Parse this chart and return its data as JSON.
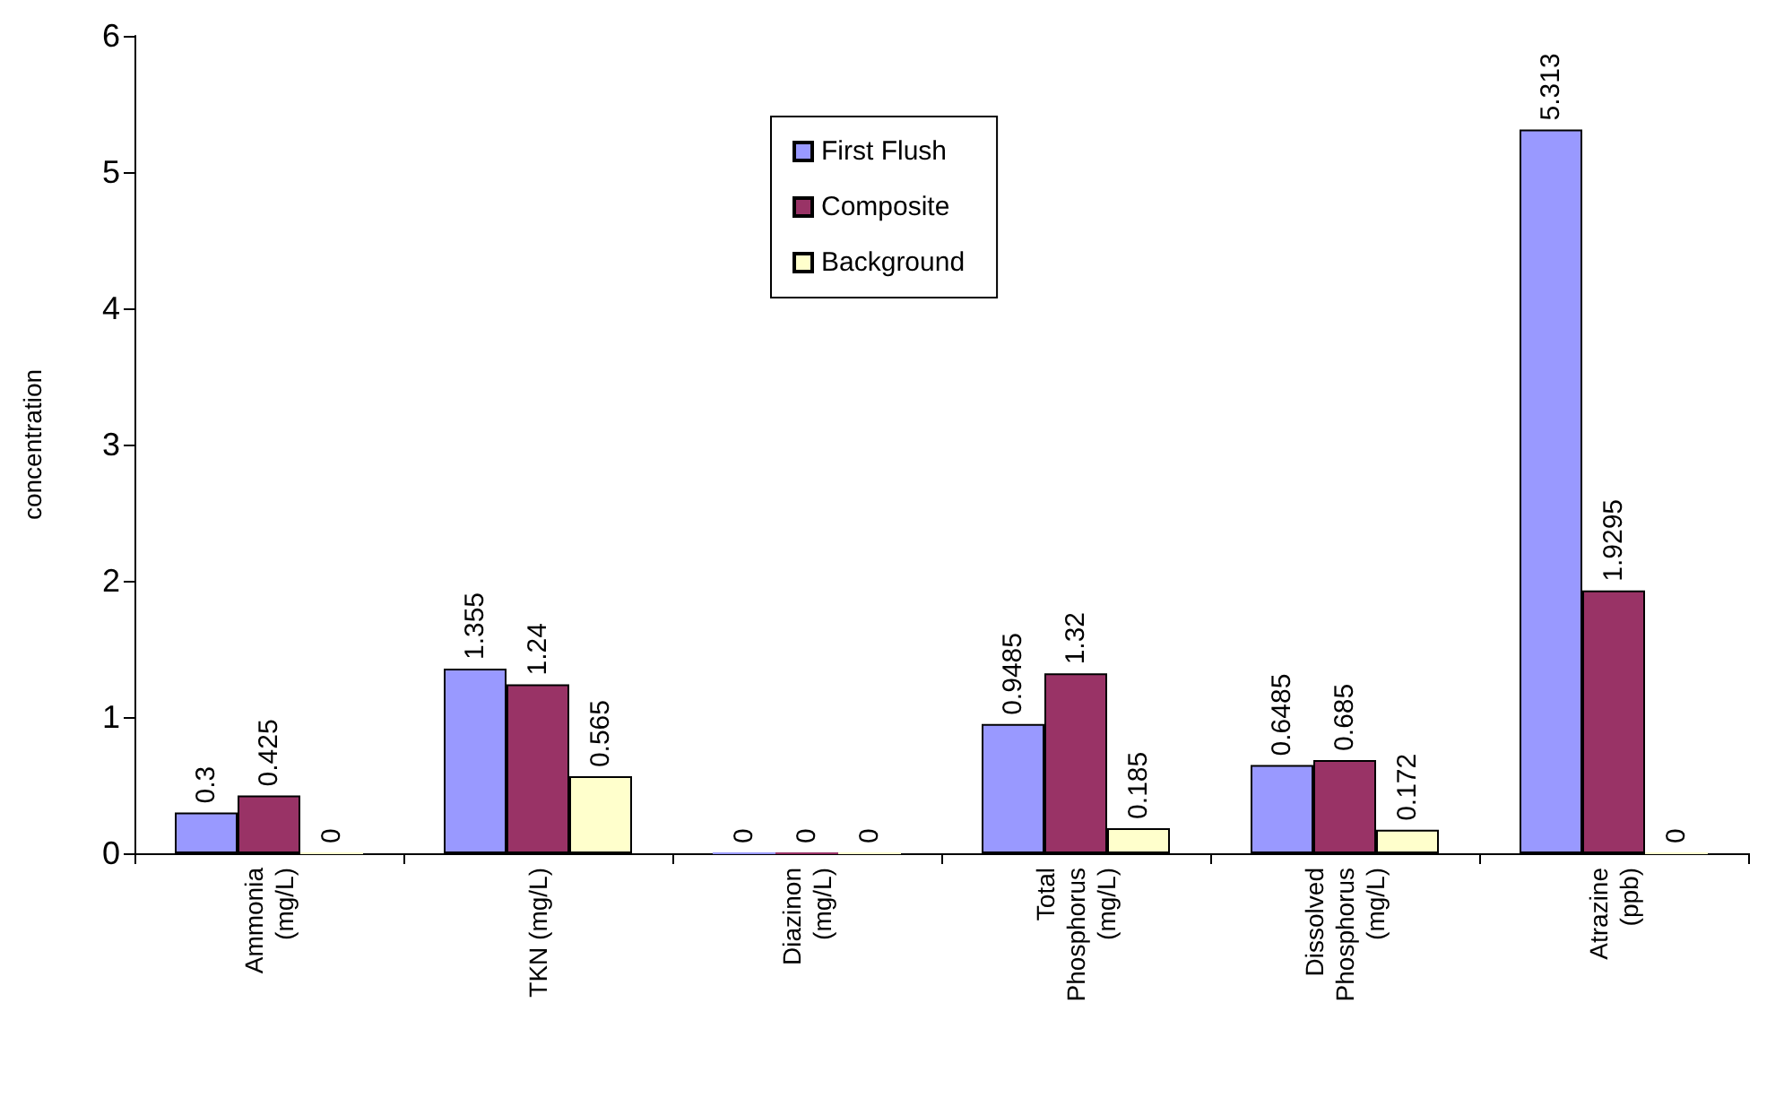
{
  "chart_data": {
    "type": "bar",
    "ylabel": "concentration",
    "categories": [
      "Ammonia (mg/L)",
      "TKN (mg/L)",
      "Diazinon (mg/L)",
      "Total Phosphorus (mg/L)",
      "Dissolved Phosphorus (mg/L)",
      "Atrazine (ppb)"
    ],
    "series": [
      {
        "name": "First Flush",
        "color": "#9999ff",
        "values": [
          0.3,
          1.355,
          0,
          0.9485,
          0.6485,
          5.313
        ]
      },
      {
        "name": "Composite",
        "color": "#993366",
        "values": [
          0.425,
          1.24,
          0,
          1.32,
          0.685,
          1.9295
        ]
      },
      {
        "name": "Background",
        "color": "#ffffcc",
        "values": [
          0,
          0.565,
          0,
          0.185,
          0.172,
          0
        ]
      }
    ],
    "ylim": [
      0,
      6
    ],
    "yticks": [
      0,
      1,
      2,
      3,
      4,
      5,
      6
    ],
    "grid": false,
    "legend": "top",
    "data_labels": true
  }
}
